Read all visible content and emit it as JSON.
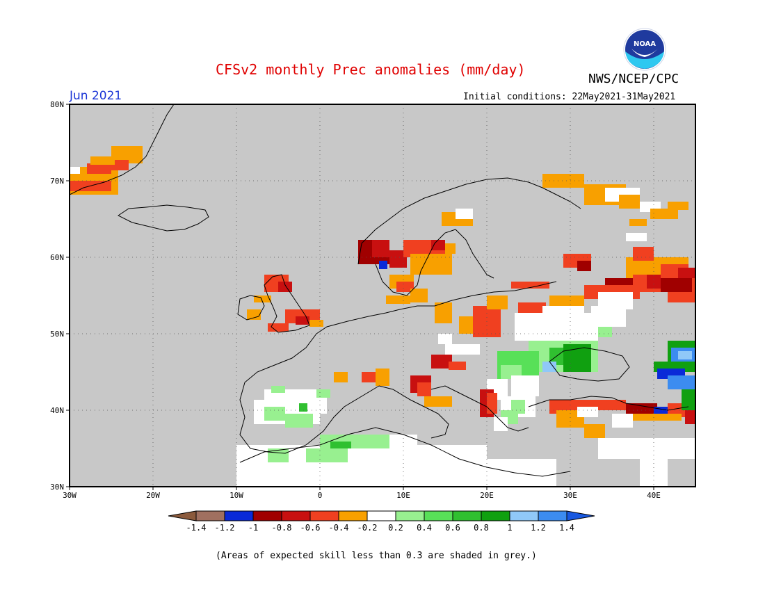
{
  "header": {
    "title": "CFSv2 monthly Prec anomalies (mm/day)",
    "agency": "NWS/NCEP/CPC",
    "logo_text": "NOAA",
    "month": "Jun 2021",
    "initial_conditions": "Initial conditions: 22May2021-31May2021"
  },
  "axes": {
    "lat_labels": [
      "80N",
      "70N",
      "60N",
      "50N",
      "40N",
      "30N"
    ],
    "lon_labels": [
      "30W",
      "20W",
      "10W",
      "0",
      "10E",
      "20E",
      "30E",
      "40E"
    ]
  },
  "colorbar": {
    "labels": [
      "-1.4",
      "-1.2",
      "-1",
      "-0.8",
      "-0.6",
      "-0.4",
      "-0.2",
      "0.2",
      "0.4",
      "0.6",
      "0.8",
      "1",
      "1.2",
      "1.4"
    ],
    "colors": [
      "#8b5a3c",
      "#a07060",
      "#0a2ad8",
      "#a00000",
      "#c81010",
      "#f04020",
      "#f8a000",
      "#ffffff",
      "#98f090",
      "#58e058",
      "#30c030",
      "#10a010",
      "#90c8f8",
      "#3c8cf0",
      "#1858e0"
    ]
  },
  "footer": "(Areas of expected skill less than 0.3 are shaded in grey.)",
  "colors": {
    "grey_mask": "#c8c8c8",
    "title": "#e00000",
    "month": "#1a35d6"
  }
}
